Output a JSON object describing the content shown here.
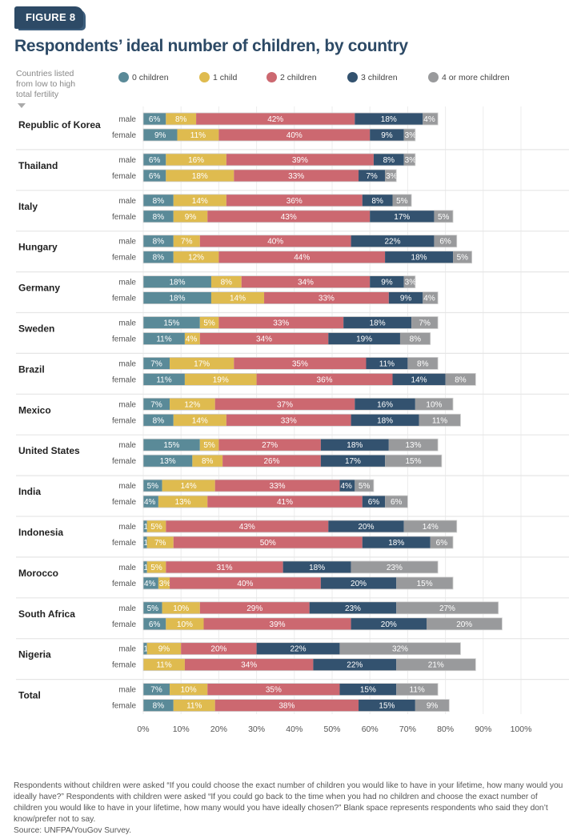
{
  "figure_label": "FIGURE 8",
  "title": "Respondents’ ideal number of children, by country",
  "sort_note": "Countries listed from low to high total fertility",
  "footnote": "Respondents without children were asked  “If you could choose the exact number of children you would like to have in your lifetime, how many would you ideally have?” Respondents with children were asked “If you could go back to the time when you had no children and choose the exact number of children you would like to have in your lifetime, how many would you have ideally chosen?” Blank space represents respondents who said they don’t know/prefer not to say.",
  "source": "Source: UNFPA/YouGov Survey.",
  "chart_data": {
    "type": "bar",
    "orientation": "horizontal",
    "stacked": true,
    "title": "Respondents’ ideal number of children, by country",
    "xlabel": "",
    "ylabel": "",
    "xlim": [
      0,
      100
    ],
    "x_ticks": [
      "0%",
      "10%",
      "20%",
      "30%",
      "40%",
      "50%",
      "60%",
      "70%",
      "80%",
      "90%",
      "100%"
    ],
    "grid": true,
    "legend_position": "top",
    "series": [
      {
        "name": "0 children",
        "color": "#5a8a98"
      },
      {
        "name": "1 child",
        "color": "#dfbb4f"
      },
      {
        "name": "2 children",
        "color": "#cc6870"
      },
      {
        "name": "3 children",
        "color": "#33526f"
      },
      {
        "name": "4 or more children",
        "color": "#999a9c"
      }
    ],
    "groups": [
      {
        "country": "Republic of Korea",
        "rows": [
          {
            "label": "male",
            "values": [
              6,
              8,
              42,
              18,
              4
            ]
          },
          {
            "label": "female",
            "values": [
              9,
              11,
              40,
              9,
              3
            ]
          }
        ]
      },
      {
        "country": "Thailand",
        "rows": [
          {
            "label": "male",
            "values": [
              6,
              16,
              39,
              8,
              3
            ]
          },
          {
            "label": "female",
            "values": [
              6,
              18,
              33,
              7,
              3
            ]
          }
        ]
      },
      {
        "country": "Italy",
        "rows": [
          {
            "label": "male",
            "values": [
              8,
              14,
              36,
              8,
              5
            ]
          },
          {
            "label": "female",
            "values": [
              8,
              9,
              43,
              17,
              5
            ]
          }
        ]
      },
      {
        "country": "Hungary",
        "rows": [
          {
            "label": "male",
            "values": [
              8,
              7,
              40,
              22,
              6
            ]
          },
          {
            "label": "female",
            "values": [
              8,
              12,
              44,
              18,
              5
            ]
          }
        ]
      },
      {
        "country": "Germany",
        "rows": [
          {
            "label": "male",
            "values": [
              18,
              8,
              34,
              9,
              3
            ]
          },
          {
            "label": "female",
            "values": [
              18,
              14,
              33,
              9,
              4
            ]
          }
        ]
      },
      {
        "country": "Sweden",
        "rows": [
          {
            "label": "male",
            "values": [
              15,
              5,
              33,
              18,
              7
            ]
          },
          {
            "label": "female",
            "values": [
              11,
              4,
              34,
              19,
              8
            ]
          }
        ]
      },
      {
        "country": "Brazil",
        "rows": [
          {
            "label": "male",
            "values": [
              7,
              17,
              35,
              11,
              8
            ]
          },
          {
            "label": "female",
            "values": [
              11,
              19,
              36,
              14,
              8
            ]
          }
        ]
      },
      {
        "country": "Mexico",
        "rows": [
          {
            "label": "male",
            "values": [
              7,
              12,
              37,
              16,
              10
            ]
          },
          {
            "label": "female",
            "values": [
              8,
              14,
              33,
              18,
              11
            ]
          }
        ]
      },
      {
        "country": "United States",
        "rows": [
          {
            "label": "male",
            "values": [
              15,
              5,
              27,
              18,
              13
            ]
          },
          {
            "label": "female",
            "values": [
              13,
              8,
              26,
              17,
              15
            ]
          }
        ]
      },
      {
        "country": "India",
        "rows": [
          {
            "label": "male",
            "values": [
              5,
              14,
              33,
              4,
              5
            ]
          },
          {
            "label": "female",
            "values": [
              4,
              13,
              41,
              6,
              6
            ]
          }
        ]
      },
      {
        "country": "Indonesia",
        "rows": [
          {
            "label": "male",
            "values": [
              1,
              5,
              43,
              20,
              14
            ]
          },
          {
            "label": "female",
            "values": [
              1,
              7,
              50,
              18,
              6
            ]
          }
        ]
      },
      {
        "country": "Morocco",
        "rows": [
          {
            "label": "male",
            "values": [
              1,
              5,
              31,
              18,
              23
            ]
          },
          {
            "label": "female",
            "values": [
              4,
              3,
              40,
              20,
              15
            ]
          }
        ]
      },
      {
        "country": "South Africa",
        "rows": [
          {
            "label": "male",
            "values": [
              5,
              10,
              29,
              23,
              27
            ]
          },
          {
            "label": "female",
            "values": [
              6,
              10,
              39,
              20,
              20
            ]
          }
        ]
      },
      {
        "country": "Nigeria",
        "rows": [
          {
            "label": "male",
            "values": [
              1,
              9,
              20,
              22,
              32
            ]
          },
          {
            "label": "female",
            "values": [
              0,
              11,
              34,
              22,
              21
            ]
          }
        ]
      },
      {
        "country": "Total",
        "rows": [
          {
            "label": "male",
            "values": [
              7,
              10,
              35,
              15,
              11
            ]
          },
          {
            "label": "female",
            "values": [
              8,
              11,
              38,
              15,
              9
            ]
          }
        ]
      }
    ]
  }
}
